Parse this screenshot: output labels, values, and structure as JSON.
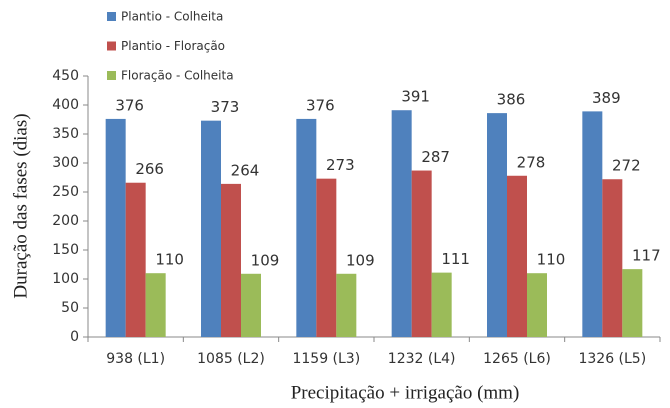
{
  "chart_data": {
    "type": "bar",
    "x_label": "Precipitação + irrigação (mm)",
    "y_label": "Duração das fases (dias)",
    "categories": [
      "938 (L1)",
      "1085 (L2)",
      "1159 (L3)",
      "1232 (L4)",
      "1265 (L6)",
      "1326 (L5)"
    ],
    "series": [
      {
        "name": "Plantio - Colheita",
        "color": "#4f81bd",
        "values": [
          376,
          373,
          376,
          391,
          386,
          389
        ]
      },
      {
        "name": "Plantio - Floração",
        "color": "#c0504d",
        "values": [
          266,
          264,
          273,
          287,
          278,
          272
        ]
      },
      {
        "name": "Floração - Colheita",
        "color": "#9bbb59",
        "values": [
          110,
          109,
          109,
          111,
          110,
          117
        ]
      }
    ],
    "ylim": [
      0,
      450
    ],
    "yticks": [
      0,
      50,
      100,
      150,
      200,
      250,
      300,
      350,
      400,
      450
    ],
    "grid": false
  }
}
